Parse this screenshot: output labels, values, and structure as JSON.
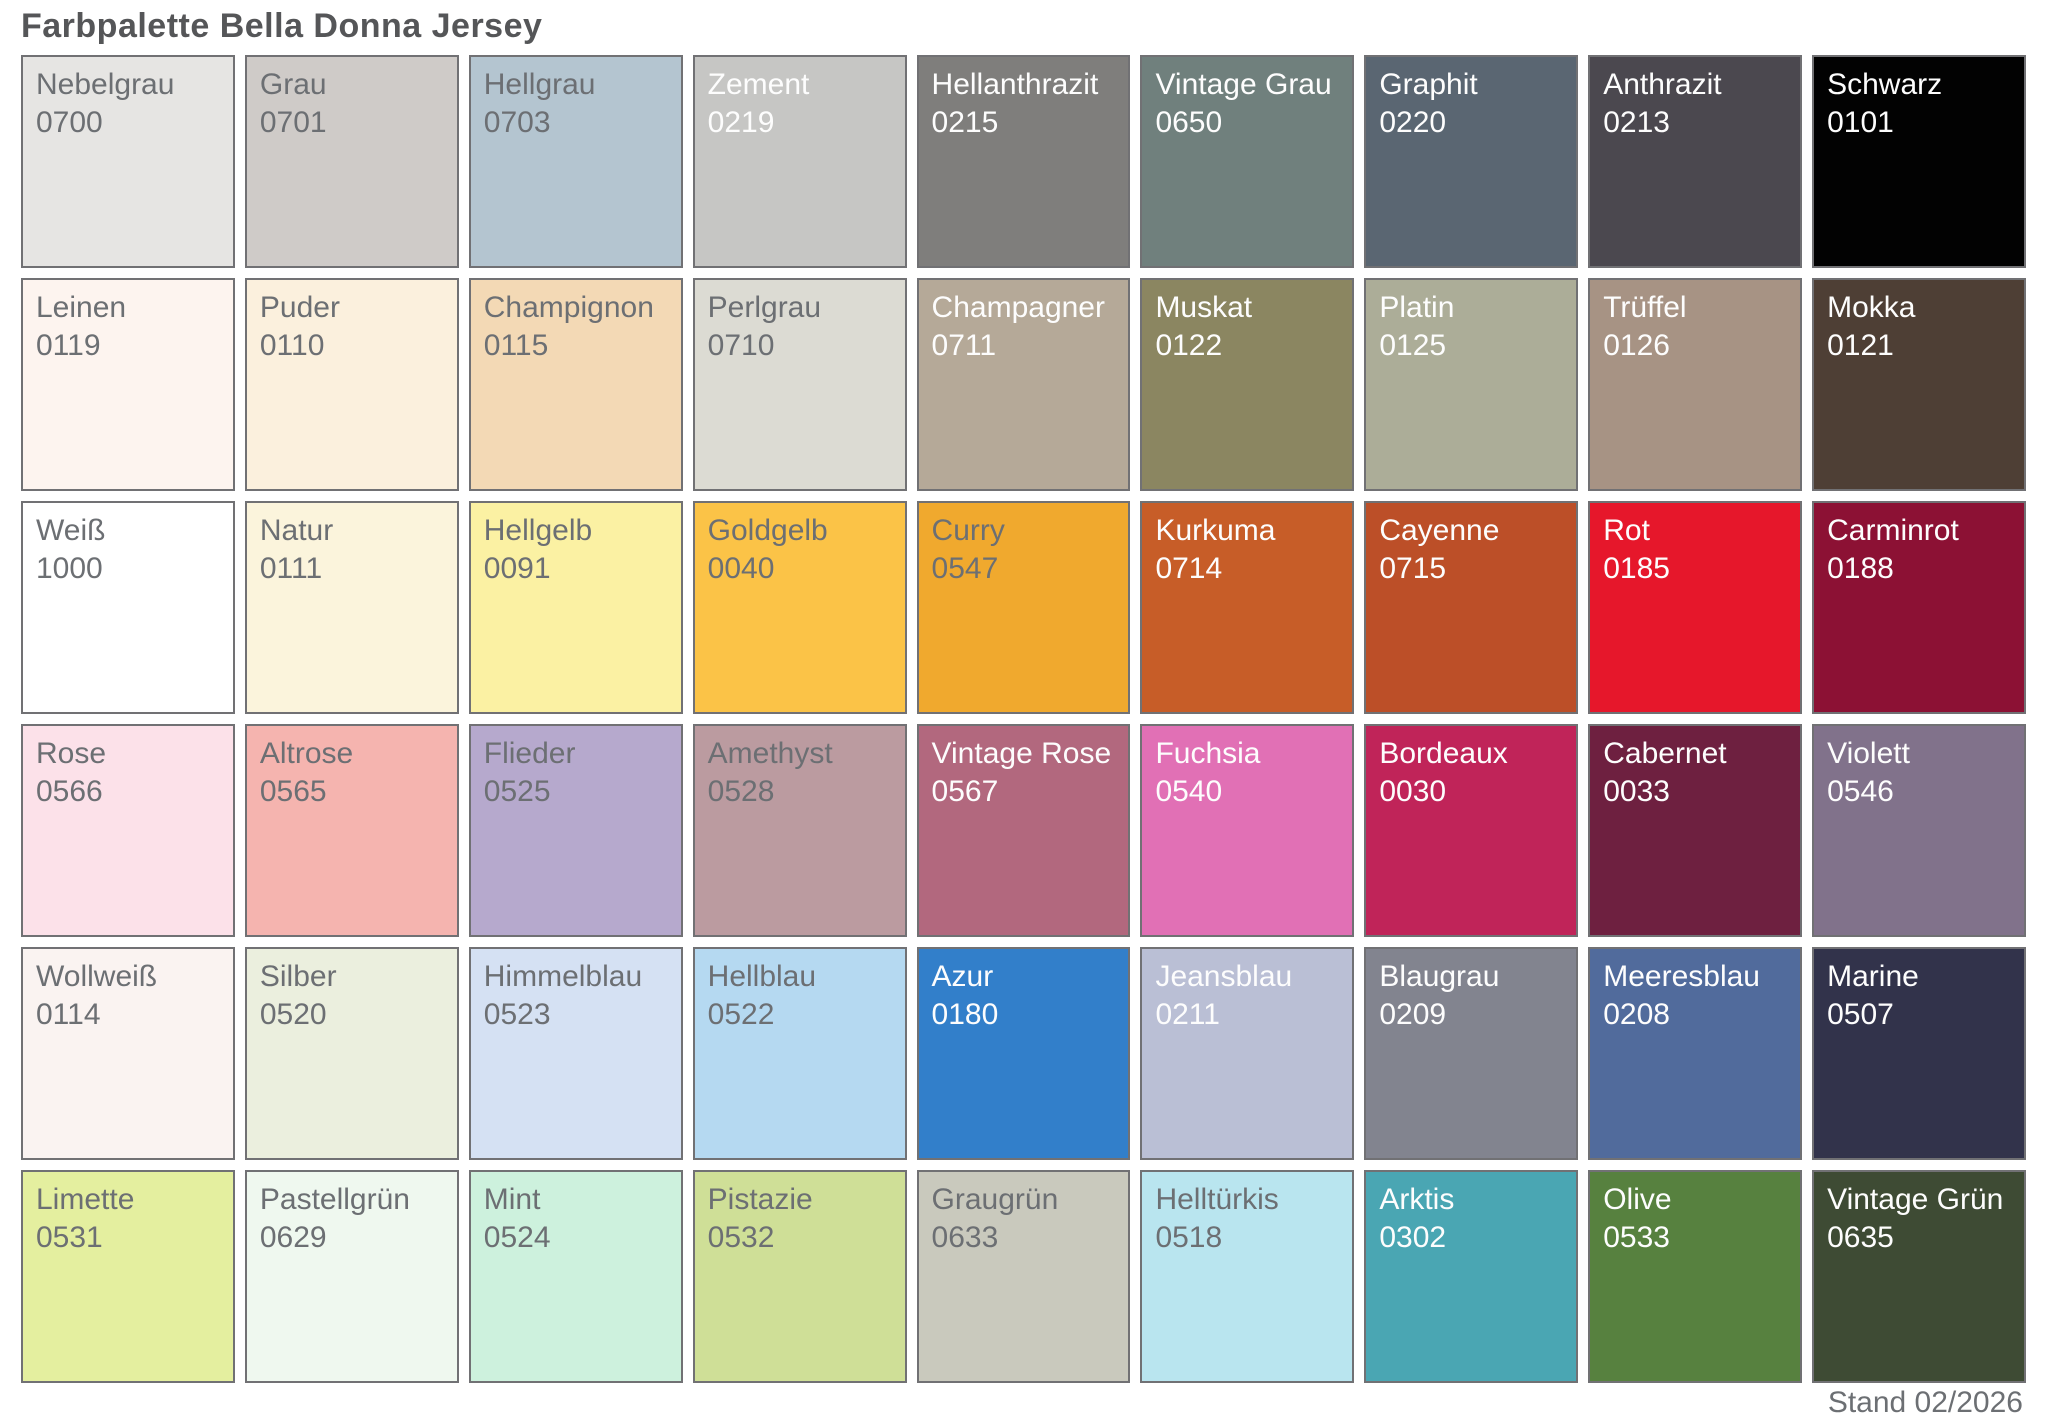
{
  "title": "Farbpalette Bella Donna Jersey",
  "footer": "Stand 02/2026",
  "colors": {
    "background": "#ffffff",
    "swatch_border": "#717174",
    "dark_label_text": "#6c6f73",
    "light_label_text": "#fdfdfd",
    "title_text": "#555658"
  },
  "palette": {
    "rows": 6,
    "columns": 9,
    "swatches": [
      {
        "name": "Nebelgrau",
        "code": "0700",
        "color": "#e6e5e3",
        "label_style": "dark"
      },
      {
        "name": "Grau",
        "code": "0701",
        "color": "#cfcbc8",
        "label_style": "dark"
      },
      {
        "name": "Hellgrau",
        "code": "0703",
        "color": "#b4c5d0",
        "label_style": "dark"
      },
      {
        "name": "Zement",
        "code": "0219",
        "color": "#c6c6c4",
        "label_style": "light"
      },
      {
        "name": "Hellanthrazit",
        "code": "0215",
        "color": "#7f7e7c",
        "label_style": "light"
      },
      {
        "name": "Vintage Grau",
        "code": "0650",
        "color": "#70807d",
        "label_style": "light"
      },
      {
        "name": "Graphit",
        "code": "0220",
        "color": "#5a6672",
        "label_style": "light"
      },
      {
        "name": "Anthrazit",
        "code": "0213",
        "color": "#4b484f",
        "label_style": "light"
      },
      {
        "name": "Schwarz",
        "code": "0101",
        "color": "#020202",
        "label_style": "light"
      },
      {
        "name": "Leinen",
        "code": "0119",
        "color": "#fdf4ef",
        "label_style": "dark"
      },
      {
        "name": "Puder",
        "code": "0110",
        "color": "#fbf0dd",
        "label_style": "dark"
      },
      {
        "name": "Champignon",
        "code": "0115",
        "color": "#f3d9b5",
        "label_style": "dark"
      },
      {
        "name": "Perlgrau",
        "code": "0710",
        "color": "#dcdbd3",
        "label_style": "dark"
      },
      {
        "name": "Champagner",
        "code": "0711",
        "color": "#b5a998",
        "label_style": "light"
      },
      {
        "name": "Muskat",
        "code": "0122",
        "color": "#8b8661",
        "label_style": "light"
      },
      {
        "name": "Platin",
        "code": "0125",
        "color": "#acad98",
        "label_style": "light"
      },
      {
        "name": "Trüffel",
        "code": "0126",
        "color": "#a79384",
        "label_style": "light"
      },
      {
        "name": "Mokka",
        "code": "0121",
        "color": "#4e3f35",
        "label_style": "light"
      },
      {
        "name": "Weiß",
        "code": "1000",
        "color": "#ffffff",
        "label_style": "dark"
      },
      {
        "name": "Natur",
        "code": "0111",
        "color": "#fbf4dc",
        "label_style": "dark"
      },
      {
        "name": "Hellgelb",
        "code": "0091",
        "color": "#fbf1a3",
        "label_style": "dark"
      },
      {
        "name": "Goldgelb",
        "code": "0040",
        "color": "#fbc347",
        "label_style": "dark"
      },
      {
        "name": "Curry",
        "code": "0547",
        "color": "#f0a92e",
        "label_style": "dark"
      },
      {
        "name": "Kurkuma",
        "code": "0714",
        "color": "#c75d28",
        "label_style": "light"
      },
      {
        "name": "Cayenne",
        "code": "0715",
        "color": "#bc4f28",
        "label_style": "light"
      },
      {
        "name": "Rot",
        "code": "0185",
        "color": "#e6172b",
        "label_style": "light"
      },
      {
        "name": "Carminrot",
        "code": "0188",
        "color": "#8c1134",
        "label_style": "light"
      },
      {
        "name": "Rose",
        "code": "0566",
        "color": "#fce1e9",
        "label_style": "dark"
      },
      {
        "name": "Altrose",
        "code": "0565",
        "color": "#f5b4af",
        "label_style": "dark"
      },
      {
        "name": "Flieder",
        "code": "0525",
        "color": "#b6a9cd",
        "label_style": "dark"
      },
      {
        "name": "Amethyst",
        "code": "0528",
        "color": "#bb9ba0",
        "label_style": "dark"
      },
      {
        "name": "Vintage Rose",
        "code": "0567",
        "color": "#b2687e",
        "label_style": "light"
      },
      {
        "name": "Fuchsia",
        "code": "0540",
        "color": "#e170b5",
        "label_style": "light"
      },
      {
        "name": "Bordeaux",
        "code": "0030",
        "color": "#c02459",
        "label_style": "light"
      },
      {
        "name": "Cabernet",
        "code": "0033",
        "color": "#6e2040",
        "label_style": "light"
      },
      {
        "name": "Violett",
        "code": "0546",
        "color": "#81728b",
        "label_style": "light"
      },
      {
        "name": "Wollweiß",
        "code": "0114",
        "color": "#faf3f1",
        "label_style": "dark"
      },
      {
        "name": "Silber",
        "code": "0520",
        "color": "#ebefde",
        "label_style": "dark"
      },
      {
        "name": "Himmelblau",
        "code": "0523",
        "color": "#d5e1f3",
        "label_style": "dark"
      },
      {
        "name": "Hellblau",
        "code": "0522",
        "color": "#b5d9f1",
        "label_style": "dark"
      },
      {
        "name": "Azur",
        "code": "0180",
        "color": "#327fca",
        "label_style": "light"
      },
      {
        "name": "Jeansblau",
        "code": "0211",
        "color": "#babfd5",
        "label_style": "light"
      },
      {
        "name": "Blaugrau",
        "code": "0209",
        "color": "#82848f",
        "label_style": "light"
      },
      {
        "name": "Meeresblau",
        "code": "0208",
        "color": "#516b9c",
        "label_style": "light"
      },
      {
        "name": "Marine",
        "code": "0507",
        "color": "#32334b",
        "label_style": "light"
      },
      {
        "name": "Limette",
        "code": "0531",
        "color": "#e4ef9f",
        "label_style": "dark"
      },
      {
        "name": "Pastellgrün",
        "code": "0629",
        "color": "#eff8ef",
        "label_style": "dark"
      },
      {
        "name": "Mint",
        "code": "0524",
        "color": "#cdf1dd",
        "label_style": "dark"
      },
      {
        "name": "Pistazie",
        "code": "0532",
        "color": "#cfdf97",
        "label_style": "dark"
      },
      {
        "name": "Graugrün",
        "code": "0633",
        "color": "#c9c9bd",
        "label_style": "dark"
      },
      {
        "name": "Helltürkis",
        "code": "0518",
        "color": "#b9e5ef",
        "label_style": "dark"
      },
      {
        "name": "Arktis",
        "code": "0302",
        "color": "#4aa6b3",
        "label_style": "light"
      },
      {
        "name": "Olive",
        "code": "0533",
        "color": "#57813f",
        "label_style": "light"
      },
      {
        "name": "Vintage Grün",
        "code": "0635",
        "color": "#3e4b34",
        "label_style": "light"
      }
    ]
  }
}
